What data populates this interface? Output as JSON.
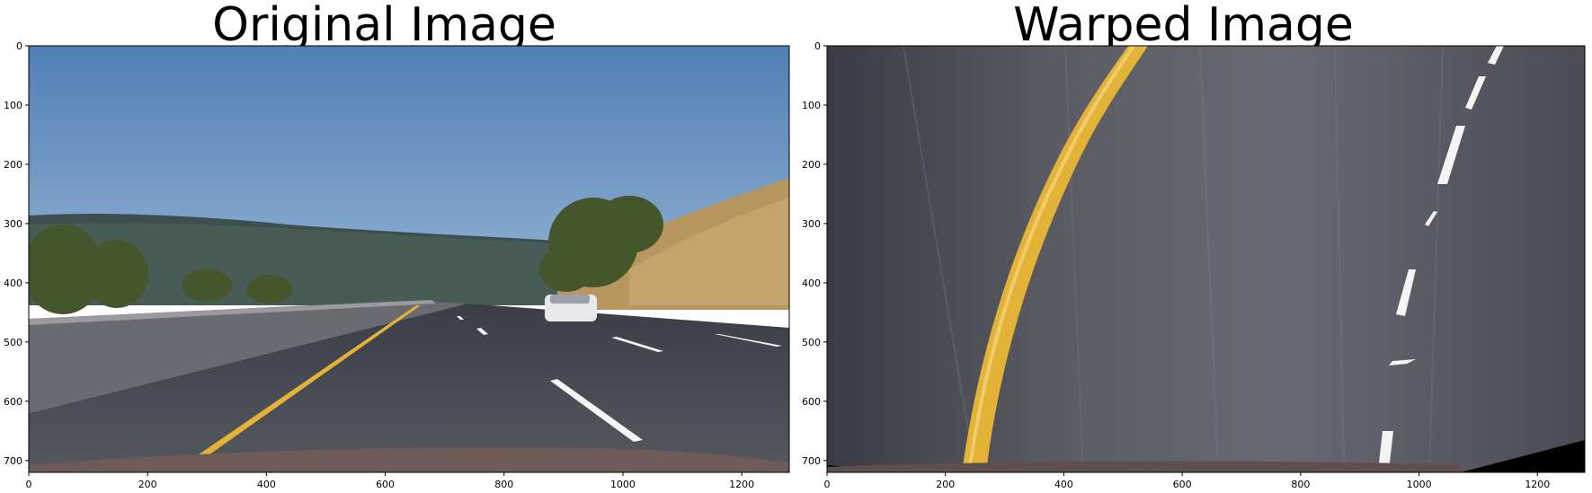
{
  "panels": [
    {
      "title": "Original Image",
      "x_ticks": [
        "0",
        "200",
        "400",
        "600",
        "800",
        "1000",
        "1200"
      ],
      "y_ticks": [
        "0",
        "100",
        "200",
        "300",
        "400",
        "500",
        "600",
        "700"
      ],
      "x_tick_values": [
        0,
        200,
        400,
        600,
        800,
        1000,
        1200
      ],
      "y_tick_values": [
        0,
        100,
        200,
        300,
        400,
        500,
        600,
        700
      ],
      "xlim": [
        0,
        1280
      ],
      "ylim": [
        720,
        0
      ]
    },
    {
      "title": "Warped Image",
      "x_ticks": [
        "0",
        "200",
        "400",
        "600",
        "800",
        "1000",
        "1200"
      ],
      "y_ticks": [
        "0",
        "100",
        "200",
        "300",
        "400",
        "500",
        "600",
        "700"
      ],
      "x_tick_values": [
        0,
        200,
        400,
        600,
        800,
        1000,
        1200
      ],
      "y_tick_values": [
        0,
        100,
        200,
        300,
        400,
        500,
        600,
        700
      ],
      "xlim": [
        0,
        1280
      ],
      "ylim": [
        720,
        0
      ]
    }
  ],
  "colors": {
    "sky": "#5f8dbf",
    "road": "#4a4a52",
    "yellow_line": "#e2b336",
    "white_line": "#f4f4f4",
    "hill": "#b89660",
    "trees": "#4a5a30",
    "hood": "#6e5a58"
  }
}
